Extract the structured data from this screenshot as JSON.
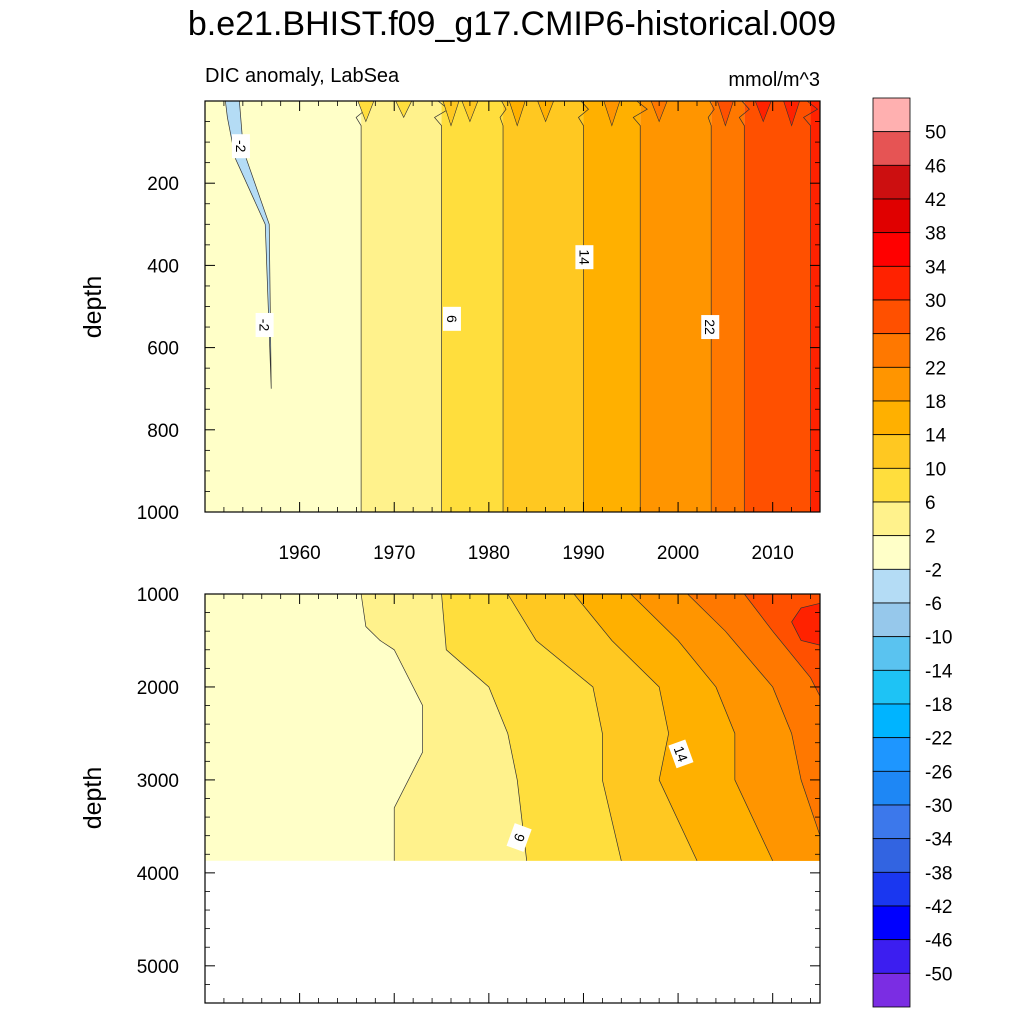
{
  "figure": {
    "title": "b.e21.BHIST.f09_g17.CMIP6-historical.009",
    "left_subtitle": "DIC anomaly, LabSea",
    "units": "mmol/m^3"
  },
  "colorbar": {
    "labels": [
      "50",
      "46",
      "42",
      "38",
      "34",
      "30",
      "26",
      "22",
      "18",
      "14",
      "10",
      "6",
      "2",
      "-2",
      "-6",
      "-10",
      "-14",
      "-18",
      "-22",
      "-26",
      "-30",
      "-34",
      "-38",
      "-42",
      "-46",
      "-50"
    ],
    "colors_top_to_bottom": [
      "#ffb0b0",
      "#e65454",
      "#cc0f10",
      "#e00000",
      "#ff0000",
      "#ff2200",
      "#ff5000",
      "#ff7800",
      "#ff9500",
      "#ffb000",
      "#ffc821",
      "#ffde3d",
      "#fff28c",
      "#ffffc8",
      "#b4dcf5",
      "#96c8eb",
      "#5ac3f0",
      "#1ec3f5",
      "#00b4ff",
      "#1e96ff",
      "#1e87f5",
      "#3c78eb",
      "#3264e1",
      "#1a37f0",
      "#0000ff",
      "#3c1ef0",
      "#7b2de3"
    ]
  },
  "chart_data": [
    {
      "type": "heatmap",
      "panel": "upper",
      "title": "b.e21.BHIST.f09_g17.CMIP6-historical.009",
      "subtitle": "DIC anomaly, LabSea",
      "units": "mmol/m^3",
      "xlabel": "",
      "ylabel": "depth",
      "xlim": [
        1950,
        2015
      ],
      "ylim": [
        1000,
        0
      ],
      "xticks": [
        1960,
        1970,
        1980,
        1990,
        2000,
        2010
      ],
      "yticks": [
        200,
        400,
        600,
        800,
        1000
      ],
      "contour_interval": 4,
      "contour_labels": [
        "-2",
        "-2",
        "6",
        "14",
        "22"
      ],
      "bands_by_year": [
        {
          "from": 1950,
          "to": 1966.5,
          "level": "-2 to 2"
        },
        {
          "from": 1966.5,
          "to": 1975,
          "level": "2 to 6"
        },
        {
          "from": 1975,
          "to": 1981.5,
          "level": "6 to 10"
        },
        {
          "from": 1981.5,
          "to": 1990,
          "level": "10 to 14"
        },
        {
          "from": 1990,
          "to": 1996,
          "level": "14 to 18"
        },
        {
          "from": 1996,
          "to": 2003.5,
          "level": "18 to 22"
        },
        {
          "from": 2003.5,
          "to": 2007,
          "level": "22 to 26"
        },
        {
          "from": 2007,
          "to": 2014,
          "level": "26 to 30"
        },
        {
          "from": 2014,
          "to": 2015,
          "level": "30 to 34"
        }
      ],
      "negative_feature": {
        "level": "-6 to -2",
        "years": [
          1953,
          1957
        ],
        "depth_max": 700
      }
    },
    {
      "type": "heatmap",
      "panel": "lower",
      "ylabel": "depth",
      "xlabel": "",
      "xlim": [
        1950,
        2015
      ],
      "ylim": [
        5400,
        1000
      ],
      "yticks": [
        1000,
        2000,
        3000,
        4000,
        5000
      ],
      "data_max_depth": 3870,
      "contour_interval": 4,
      "contour_labels": [
        "6",
        "14"
      ],
      "max_band": {
        "level": "30 to 34",
        "years": [
          2012,
          2015
        ],
        "depths": [
          1100,
          1550
        ]
      }
    }
  ]
}
